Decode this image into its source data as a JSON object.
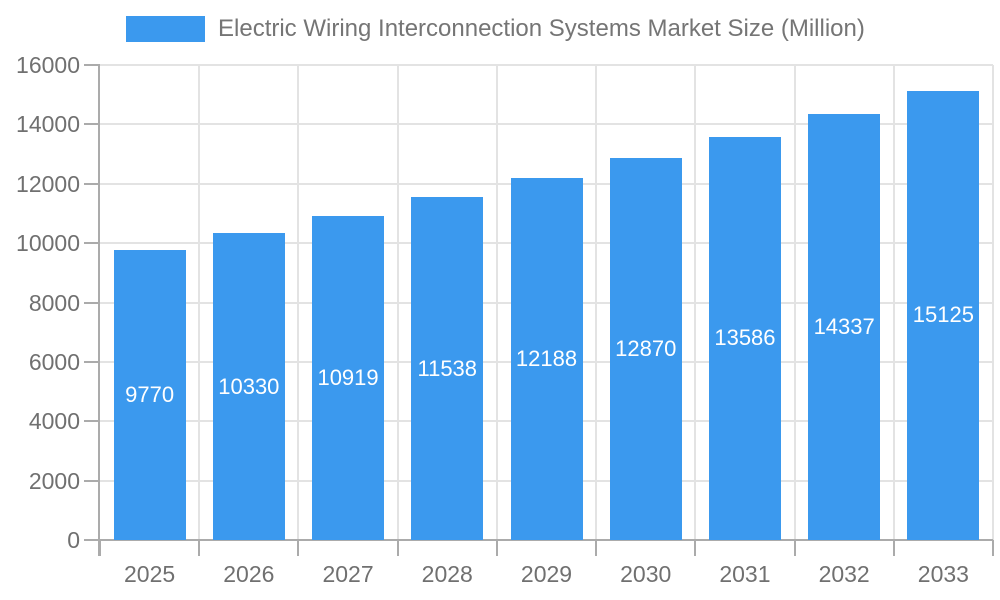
{
  "legend": {
    "label": "Electric Wiring Interconnection Systems Market Size (Million)"
  },
  "chart_data": {
    "type": "bar",
    "title": "Electric Wiring Interconnection Systems Market Size (Million)",
    "categories": [
      "2025",
      "2026",
      "2027",
      "2028",
      "2029",
      "2030",
      "2031",
      "2032",
      "2033"
    ],
    "values": [
      9770,
      10330,
      10919,
      11538,
      12188,
      12870,
      13586,
      14337,
      15125
    ],
    "xlabel": "",
    "ylabel": "",
    "ylim": [
      0,
      16000
    ],
    "yticks": [
      0,
      2000,
      4000,
      6000,
      8000,
      10000,
      12000,
      14000,
      16000
    ],
    "grid": true,
    "legend_position": "top",
    "bar_labels_inside": true,
    "colors": {
      "bar": "#3B99EE",
      "grid": "#e3e3e3",
      "axis": "#ababab",
      "text": "#707070",
      "bar_label": "#ffffff",
      "background": "#ffffff"
    }
  }
}
